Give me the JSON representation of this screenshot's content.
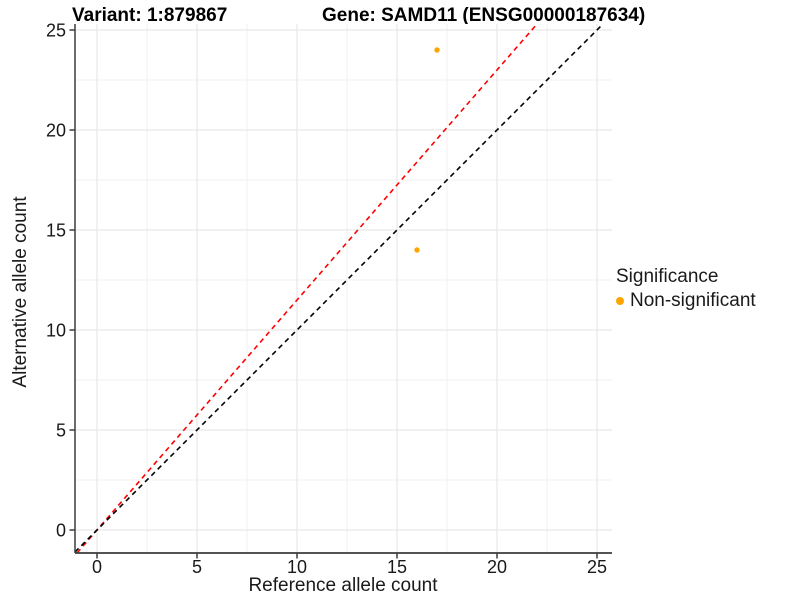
{
  "header": {
    "variant_label": "Variant: 1:879867",
    "gene_label": "Gene: SAMD11 (ENSG00000187634)"
  },
  "chart_data": {
    "type": "scatter",
    "title": "Variant: 1:879867   Gene: SAMD11 (ENSG00000187634)",
    "xlabel": "Reference allele count",
    "ylabel": "Alternative allele count",
    "xticks": [
      0,
      5,
      10,
      15,
      20,
      25
    ],
    "yticks": [
      0,
      5,
      10,
      15,
      20,
      25
    ],
    "xlim": [
      -1.1,
      25.75
    ],
    "ylim": [
      -1.15,
      25.3
    ],
    "major_step": 5,
    "minor_step": 2.5,
    "grid": "major and minor gridlines on white panel",
    "points": [
      {
        "x": 17,
        "y": 24,
        "series": "Non-significant"
      },
      {
        "x": 16,
        "y": 14,
        "series": "Non-significant"
      }
    ],
    "lines": [
      {
        "name": "expected-ratio",
        "slope": 1.15,
        "intercept": 0,
        "color": "#FF0000",
        "dashed": true
      },
      {
        "name": "identity",
        "slope": 1,
        "intercept": 0,
        "color": "#000000",
        "dashed": true
      }
    ],
    "legend": {
      "title": "Significance",
      "position": "right",
      "items": [
        {
          "label": "Non-significant",
          "color": "#FFA500"
        }
      ]
    },
    "colors": {
      "point": "#FFA500",
      "grid_major": "#E3E3E3",
      "grid_minor": "#F1F1F1",
      "axis_line": "#3C3C3C",
      "tick_label": "#1A1A1A"
    }
  }
}
